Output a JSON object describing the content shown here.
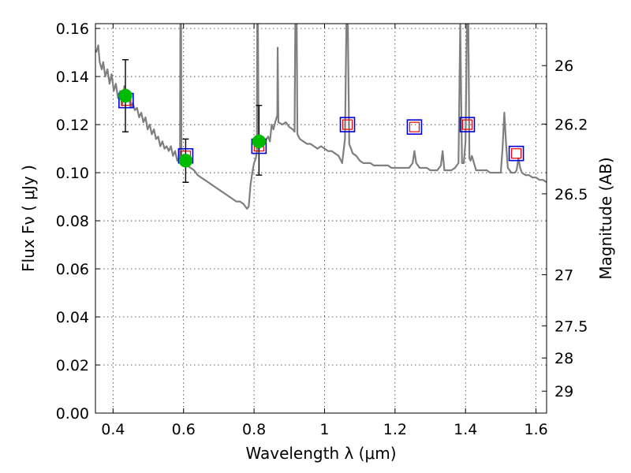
{
  "chart_data": {
    "type": "scatter",
    "title": "",
    "xlabel": "Wavelength  λ (μm)",
    "ylabel": "Flux  Fν  ( μJy )",
    "y2label": "Magnitude (AB)",
    "xlim": [
      0.35,
      1.63
    ],
    "ylim": [
      0.0,
      0.162
    ],
    "xticks": [
      0.4,
      0.6,
      0.8,
      1.0,
      1.2,
      1.4,
      1.6
    ],
    "xtick_labels": [
      "0.4",
      "0.6",
      "0.8",
      "1",
      "1.2",
      "1.4",
      "1.6"
    ],
    "yticks": [
      0.0,
      0.02,
      0.04,
      0.06,
      0.08,
      0.1,
      0.12,
      0.14,
      0.16
    ],
    "ytick_labels": [
      "0.00",
      "0.02",
      "0.04",
      "0.06",
      "0.08",
      "0.10",
      "0.12",
      "0.14",
      "0.16"
    ],
    "y2ticks": [
      {
        "mag": 26,
        "label": "26"
      },
      {
        "mag": 26.2,
        "label": "26.2"
      },
      {
        "mag": 26.5,
        "label": "26.5"
      },
      {
        "mag": 27,
        "label": "27"
      },
      {
        "mag": 27.5,
        "label": "27.5"
      },
      {
        "mag": 28,
        "label": "28"
      },
      {
        "mag": 29,
        "label": "29"
      }
    ],
    "grid": true,
    "colors": {
      "model": "#7f7f7f",
      "observed": "#00bb00",
      "model_box": "#0000dd",
      "model_box_inner": "#ee0000",
      "errorbar": "#000000"
    },
    "model_spectrum": [
      [
        0.352,
        0.15
      ],
      [
        0.358,
        0.153
      ],
      [
        0.362,
        0.146
      ],
      [
        0.368,
        0.143
      ],
      [
        0.372,
        0.146
      ],
      [
        0.378,
        0.14
      ],
      [
        0.384,
        0.143
      ],
      [
        0.39,
        0.137
      ],
      [
        0.396,
        0.141
      ],
      [
        0.402,
        0.134
      ],
      [
        0.408,
        0.137
      ],
      [
        0.414,
        0.131
      ],
      [
        0.42,
        0.134
      ],
      [
        0.426,
        0.128
      ],
      [
        0.432,
        0.136
      ],
      [
        0.438,
        0.13
      ],
      [
        0.444,
        0.132
      ],
      [
        0.45,
        0.127
      ],
      [
        0.456,
        0.129
      ],
      [
        0.462,
        0.126
      ],
      [
        0.468,
        0.127
      ],
      [
        0.474,
        0.123
      ],
      [
        0.48,
        0.125
      ],
      [
        0.486,
        0.121
      ],
      [
        0.492,
        0.123
      ],
      [
        0.498,
        0.118
      ],
      [
        0.504,
        0.12
      ],
      [
        0.51,
        0.116
      ],
      [
        0.516,
        0.118
      ],
      [
        0.522,
        0.114
      ],
      [
        0.528,
        0.115
      ],
      [
        0.534,
        0.111
      ],
      [
        0.54,
        0.113
      ],
      [
        0.546,
        0.11
      ],
      [
        0.552,
        0.111
      ],
      [
        0.558,
        0.109
      ],
      [
        0.564,
        0.111
      ],
      [
        0.57,
        0.107
      ],
      [
        0.576,
        0.109
      ],
      [
        0.582,
        0.105
      ],
      [
        0.588,
        0.106
      ],
      [
        0.59,
        0.108
      ],
      [
        0.591,
        0.162
      ],
      [
        0.593,
        0.162
      ],
      [
        0.594,
        0.104
      ],
      [
        0.6,
        0.103
      ],
      [
        0.61,
        0.103
      ],
      [
        0.62,
        0.102
      ],
      [
        0.63,
        0.101
      ],
      [
        0.64,
        0.099
      ],
      [
        0.65,
        0.098
      ],
      [
        0.66,
        0.097
      ],
      [
        0.67,
        0.096
      ],
      [
        0.68,
        0.095
      ],
      [
        0.69,
        0.094
      ],
      [
        0.7,
        0.093
      ],
      [
        0.71,
        0.092
      ],
      [
        0.72,
        0.091
      ],
      [
        0.73,
        0.09
      ],
      [
        0.74,
        0.089
      ],
      [
        0.75,
        0.088
      ],
      [
        0.76,
        0.088
      ],
      [
        0.77,
        0.087
      ],
      [
        0.775,
        0.086
      ],
      [
        0.78,
        0.085
      ],
      [
        0.785,
        0.086
      ],
      [
        0.79,
        0.095
      ],
      [
        0.795,
        0.1
      ],
      [
        0.8,
        0.104
      ],
      [
        0.805,
        0.106
      ],
      [
        0.808,
        0.109
      ],
      [
        0.809,
        0.162
      ],
      [
        0.811,
        0.162
      ],
      [
        0.813,
        0.11
      ],
      [
        0.82,
        0.111
      ],
      [
        0.83,
        0.113
      ],
      [
        0.84,
        0.115
      ],
      [
        0.845,
        0.113
      ],
      [
        0.85,
        0.12
      ],
      [
        0.855,
        0.118
      ],
      [
        0.86,
        0.121
      ],
      [
        0.866,
        0.124
      ],
      [
        0.867,
        0.152
      ],
      [
        0.869,
        0.121
      ],
      [
        0.88,
        0.12
      ],
      [
        0.89,
        0.121
      ],
      [
        0.9,
        0.119
      ],
      [
        0.91,
        0.118
      ],
      [
        0.915,
        0.117
      ],
      [
        0.917,
        0.162
      ],
      [
        0.921,
        0.162
      ],
      [
        0.923,
        0.116
      ],
      [
        0.93,
        0.114
      ],
      [
        0.94,
        0.113
      ],
      [
        0.95,
        0.112
      ],
      [
        0.96,
        0.112
      ],
      [
        0.97,
        0.111
      ],
      [
        0.98,
        0.11
      ],
      [
        0.99,
        0.111
      ],
      [
        1.0,
        0.11
      ],
      [
        1.01,
        0.109
      ],
      [
        1.02,
        0.109
      ],
      [
        1.03,
        0.108
      ],
      [
        1.04,
        0.107
      ],
      [
        1.05,
        0.104
      ],
      [
        1.058,
        0.114
      ],
      [
        1.062,
        0.162
      ],
      [
        1.066,
        0.162
      ],
      [
        1.07,
        0.112
      ],
      [
        1.08,
        0.108
      ],
      [
        1.09,
        0.107
      ],
      [
        1.1,
        0.105
      ],
      [
        1.11,
        0.104
      ],
      [
        1.12,
        0.104
      ],
      [
        1.13,
        0.104
      ],
      [
        1.14,
        0.103
      ],
      [
        1.15,
        0.103
      ],
      [
        1.16,
        0.103
      ],
      [
        1.17,
        0.103
      ],
      [
        1.18,
        0.103
      ],
      [
        1.19,
        0.102
      ],
      [
        1.2,
        0.102
      ],
      [
        1.21,
        0.102
      ],
      [
        1.22,
        0.102
      ],
      [
        1.23,
        0.102
      ],
      [
        1.24,
        0.102
      ],
      [
        1.25,
        0.104
      ],
      [
        1.255,
        0.109
      ],
      [
        1.26,
        0.104
      ],
      [
        1.27,
        0.102
      ],
      [
        1.28,
        0.102
      ],
      [
        1.29,
        0.102
      ],
      [
        1.3,
        0.101
      ],
      [
        1.31,
        0.101
      ],
      [
        1.32,
        0.101
      ],
      [
        1.33,
        0.103
      ],
      [
        1.335,
        0.109
      ],
      [
        1.34,
        0.101
      ],
      [
        1.35,
        0.101
      ],
      [
        1.36,
        0.101
      ],
      [
        1.37,
        0.102
      ],
      [
        1.38,
        0.104
      ],
      [
        1.385,
        0.162
      ],
      [
        1.39,
        0.104
      ],
      [
        1.395,
        0.104
      ],
      [
        1.4,
        0.113
      ],
      [
        1.404,
        0.162
      ],
      [
        1.408,
        0.162
      ],
      [
        1.411,
        0.106
      ],
      [
        1.414,
        0.105
      ],
      [
        1.418,
        0.107
      ],
      [
        1.43,
        0.101
      ],
      [
        1.44,
        0.101
      ],
      [
        1.45,
        0.101
      ],
      [
        1.46,
        0.101
      ],
      [
        1.47,
        0.1
      ],
      [
        1.48,
        0.1
      ],
      [
        1.49,
        0.1
      ],
      [
        1.5,
        0.1
      ],
      [
        1.505,
        0.11
      ],
      [
        1.51,
        0.125
      ],
      [
        1.515,
        0.112
      ],
      [
        1.52,
        0.102
      ],
      [
        1.53,
        0.1
      ],
      [
        1.54,
        0.1
      ],
      [
        1.545,
        0.101
      ],
      [
        1.55,
        0.106
      ],
      [
        1.555,
        0.102
      ],
      [
        1.56,
        0.1
      ],
      [
        1.57,
        0.099
      ],
      [
        1.58,
        0.099
      ],
      [
        1.59,
        0.098
      ],
      [
        1.6,
        0.098
      ],
      [
        1.61,
        0.097
      ],
      [
        1.62,
        0.097
      ],
      [
        1.63,
        0.096
      ]
    ],
    "model_photometry": [
      {
        "x": 0.437,
        "y": 0.13
      },
      {
        "x": 0.606,
        "y": 0.107
      },
      {
        "x": 0.814,
        "y": 0.111
      },
      {
        "x": 1.065,
        "y": 0.12
      },
      {
        "x": 1.255,
        "y": 0.119
      },
      {
        "x": 1.405,
        "y": 0.12
      },
      {
        "x": 1.544,
        "y": 0.108
      }
    ],
    "observed_photometry": [
      {
        "x": 0.435,
        "y": 0.132,
        "yerr_low": 0.117,
        "yerr_high": 0.147
      },
      {
        "x": 0.606,
        "y": 0.105,
        "yerr_low": 0.096,
        "yerr_high": 0.114
      },
      {
        "x": 0.814,
        "y": 0.113,
        "yerr_low": 0.099,
        "yerr_high": 0.128
      }
    ]
  }
}
